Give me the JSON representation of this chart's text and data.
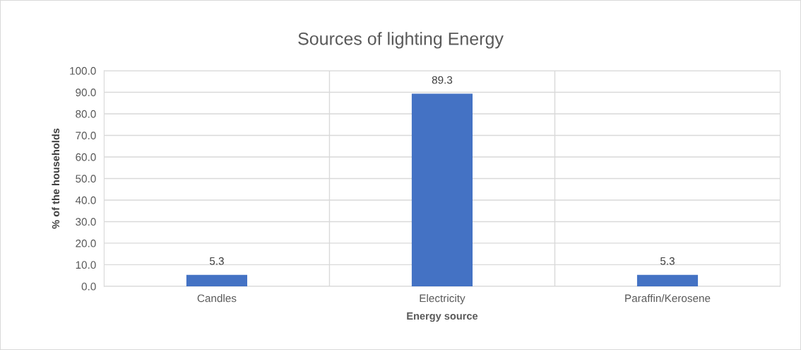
{
  "chart_data": {
    "type": "bar",
    "title": "Sources of lighting Energy",
    "xlabel": "Energy source",
    "ylabel": "% of the households",
    "categories": [
      "Candles",
      "Electricity",
      "Paraffin/Kerosene"
    ],
    "values": [
      5.3,
      89.3,
      5.3
    ],
    "color": "#4472c4",
    "ylim": [
      0,
      100
    ],
    "yticks": [
      {
        "value": 0,
        "label": "0.0"
      },
      {
        "value": 10,
        "label": "10.0"
      },
      {
        "value": 20,
        "label": "20.0"
      },
      {
        "value": 30,
        "label": "30.0"
      },
      {
        "value": 40,
        "label": "40.0"
      },
      {
        "value": 50,
        "label": "50.0"
      },
      {
        "value": 60,
        "label": "60.0"
      },
      {
        "value": 70,
        "label": "70.0"
      },
      {
        "value": 80,
        "label": "80.0"
      },
      {
        "value": 90,
        "label": "90.0"
      },
      {
        "value": 100,
        "label": "100.0"
      }
    ],
    "grid": true,
    "data_labels": true
  }
}
